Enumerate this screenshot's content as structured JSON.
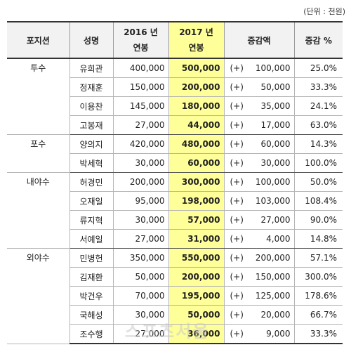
{
  "unit_note": "(단위 : 천원)",
  "headers": {
    "position": "포지션",
    "name": "성명",
    "y2016_line1": "2016 년",
    "y2016_line2": "연봉",
    "y2017_line1": "2017 년",
    "y2017_line2": "연봉",
    "increase": "증감액",
    "rate": "증감 %"
  },
  "groups": [
    {
      "position": "투수",
      "rows": [
        {
          "name": "유희관",
          "s2016": "400,000",
          "s2017": "500,000",
          "sign": "(+)",
          "inc": "100,000",
          "rate": "25.0%"
        },
        {
          "name": "정재훈",
          "s2016": "150,000",
          "s2017": "200,000",
          "sign": "(+)",
          "inc": "50,000",
          "rate": "33.3%"
        },
        {
          "name": "이용찬",
          "s2016": "145,000",
          "s2017": "180,000",
          "sign": "(+)",
          "inc": "35,000",
          "rate": "24.1%"
        },
        {
          "name": "고봉재",
          "s2016": "27,000",
          "s2017": "44,000",
          "sign": "(+)",
          "inc": "17,000",
          "rate": "63.0%"
        }
      ]
    },
    {
      "position": "포수",
      "rows": [
        {
          "name": "양의지",
          "s2016": "420,000",
          "s2017": "480,000",
          "sign": "(+)",
          "inc": "60,000",
          "rate": "14.3%"
        },
        {
          "name": "박세혁",
          "s2016": "30,000",
          "s2017": "60,000",
          "sign": "(+)",
          "inc": "30,000",
          "rate": "100.0%"
        }
      ]
    },
    {
      "position": "내야수",
      "rows": [
        {
          "name": "허경민",
          "s2016": "200,000",
          "s2017": "300,000",
          "sign": "(+)",
          "inc": "100,000",
          "rate": "50.0%"
        },
        {
          "name": "오재일",
          "s2016": "95,000",
          "s2017": "198,000",
          "sign": "(+)",
          "inc": "103,000",
          "rate": "108.4%"
        },
        {
          "name": "류지혁",
          "s2016": "30,000",
          "s2017": "57,000",
          "sign": "(+)",
          "inc": "27,000",
          "rate": "90.0%"
        },
        {
          "name": "서예일",
          "s2016": "27,000",
          "s2017": "31,000",
          "sign": "(+)",
          "inc": "4,000",
          "rate": "14.8%"
        }
      ]
    },
    {
      "position": "외야수",
      "rows": [
        {
          "name": "민병헌",
          "s2016": "350,000",
          "s2017": "550,000",
          "sign": "(+)",
          "inc": "200,000",
          "rate": "57.1%"
        },
        {
          "name": "김재환",
          "s2016": "50,000",
          "s2017": "200,000",
          "sign": "(+)",
          "inc": "150,000",
          "rate": "300.0%"
        },
        {
          "name": "박건우",
          "s2016": "70,000",
          "s2017": "195,000",
          "sign": "(+)",
          "inc": "125,000",
          "rate": "178.6%"
        },
        {
          "name": "국해성",
          "s2016": "30,000",
          "s2017": "50,000",
          "sign": "(+)",
          "inc": "20,000",
          "rate": "66.7%"
        },
        {
          "name": "조수행",
          "s2016": "27,000",
          "s2017": "36,000",
          "sign": "(+)",
          "inc": "9,000",
          "rate": "33.3%"
        }
      ]
    }
  ],
  "watermark": "스포츠서울",
  "colors": {
    "highlight": "#ffff99",
    "header_bg": "#f2f2f2"
  }
}
